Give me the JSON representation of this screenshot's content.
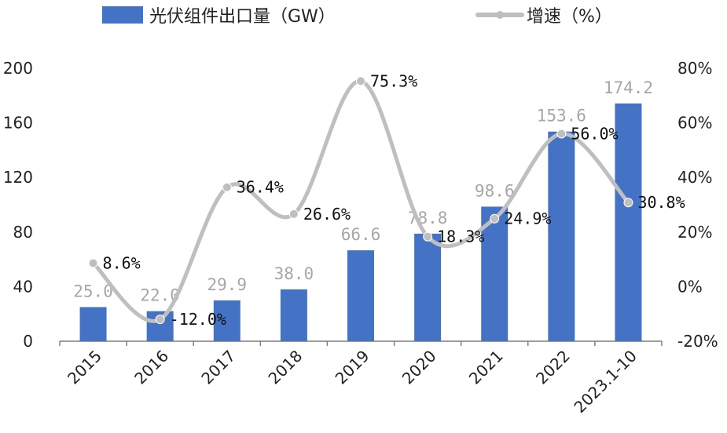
{
  "chart_data": {
    "type": "bar",
    "categories": [
      "2015",
      "2016",
      "2017",
      "2018",
      "2019",
      "2020",
      "2021",
      "2022",
      "2023.1-10"
    ],
    "series": [
      {
        "name": "光伏组件出口量（GW）",
        "type": "bar",
        "axis": "left",
        "color": "#4472c4",
        "values": [
          25.0,
          22.0,
          29.9,
          38.0,
          66.6,
          78.8,
          98.6,
          153.6,
          174.2
        ],
        "labels": [
          "25.0",
          "22.0",
          "29.9",
          "38.0",
          "66.6",
          "78.8",
          "98.6",
          "153.6",
          "174.2"
        ]
      },
      {
        "name": "增速（%）",
        "type": "line",
        "axis": "right",
        "color": "#bfbfbf",
        "values": [
          8.6,
          -12.0,
          36.4,
          26.6,
          75.3,
          18.3,
          24.9,
          56.0,
          30.8
        ],
        "labels": [
          "8.6%",
          "-12.0%",
          "36.4%",
          "26.6%",
          "75.3%",
          "18.3%",
          "24.9%",
          "56.0%",
          "30.8%"
        ]
      }
    ],
    "y_left": {
      "ylim": [
        0,
        200
      ],
      "ticks": [
        "0",
        "40",
        "80",
        "120",
        "160",
        "200"
      ]
    },
    "y_right": {
      "ylim": [
        -20,
        80
      ],
      "ticks": [
        "-20%",
        "0%",
        "20%",
        "40%",
        "60%",
        "80%"
      ]
    },
    "legend": "top",
    "grid": false
  }
}
